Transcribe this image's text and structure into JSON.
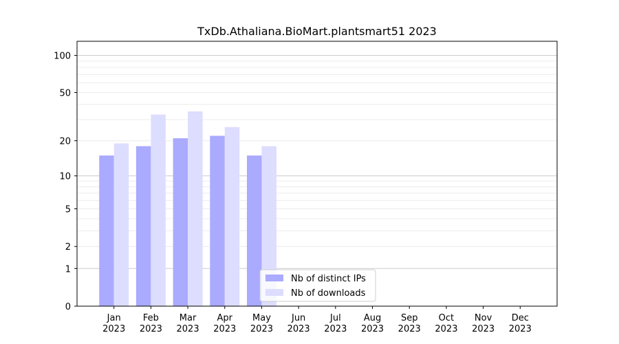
{
  "chart_data": {
    "type": "bar",
    "title": "TxDb.Athaliana.BioMart.plantsmart51 2023",
    "xlabel": "",
    "ylabel": "",
    "y_scale": "log1p",
    "ylim": [
      0,
      130
    ],
    "y_ticks": [
      0,
      1,
      2,
      5,
      10,
      20,
      50,
      100
    ],
    "grid": "horizontal",
    "legend_position": "bottom-center",
    "categories": [
      [
        "Jan",
        "2023"
      ],
      [
        "Feb",
        "2023"
      ],
      [
        "Mar",
        "2023"
      ],
      [
        "Apr",
        "2023"
      ],
      [
        "May",
        "2023"
      ],
      [
        "Jun",
        "2023"
      ],
      [
        "Jul",
        "2023"
      ],
      [
        "Aug",
        "2023"
      ],
      [
        "Sep",
        "2023"
      ],
      [
        "Oct",
        "2023"
      ],
      [
        "Nov",
        "2023"
      ],
      [
        "Dec",
        "2023"
      ]
    ],
    "series": [
      {
        "name": "Nb of distinct IPs",
        "color": "#aaaaff",
        "values": [
          15,
          18,
          21,
          22,
          15,
          0,
          0,
          0,
          0,
          0,
          0,
          0
        ]
      },
      {
        "name": "Nb of downloads",
        "color": "#ddddff",
        "values": [
          19,
          33,
          35,
          26,
          18,
          0,
          0,
          0,
          0,
          0,
          0,
          0
        ]
      }
    ]
  }
}
